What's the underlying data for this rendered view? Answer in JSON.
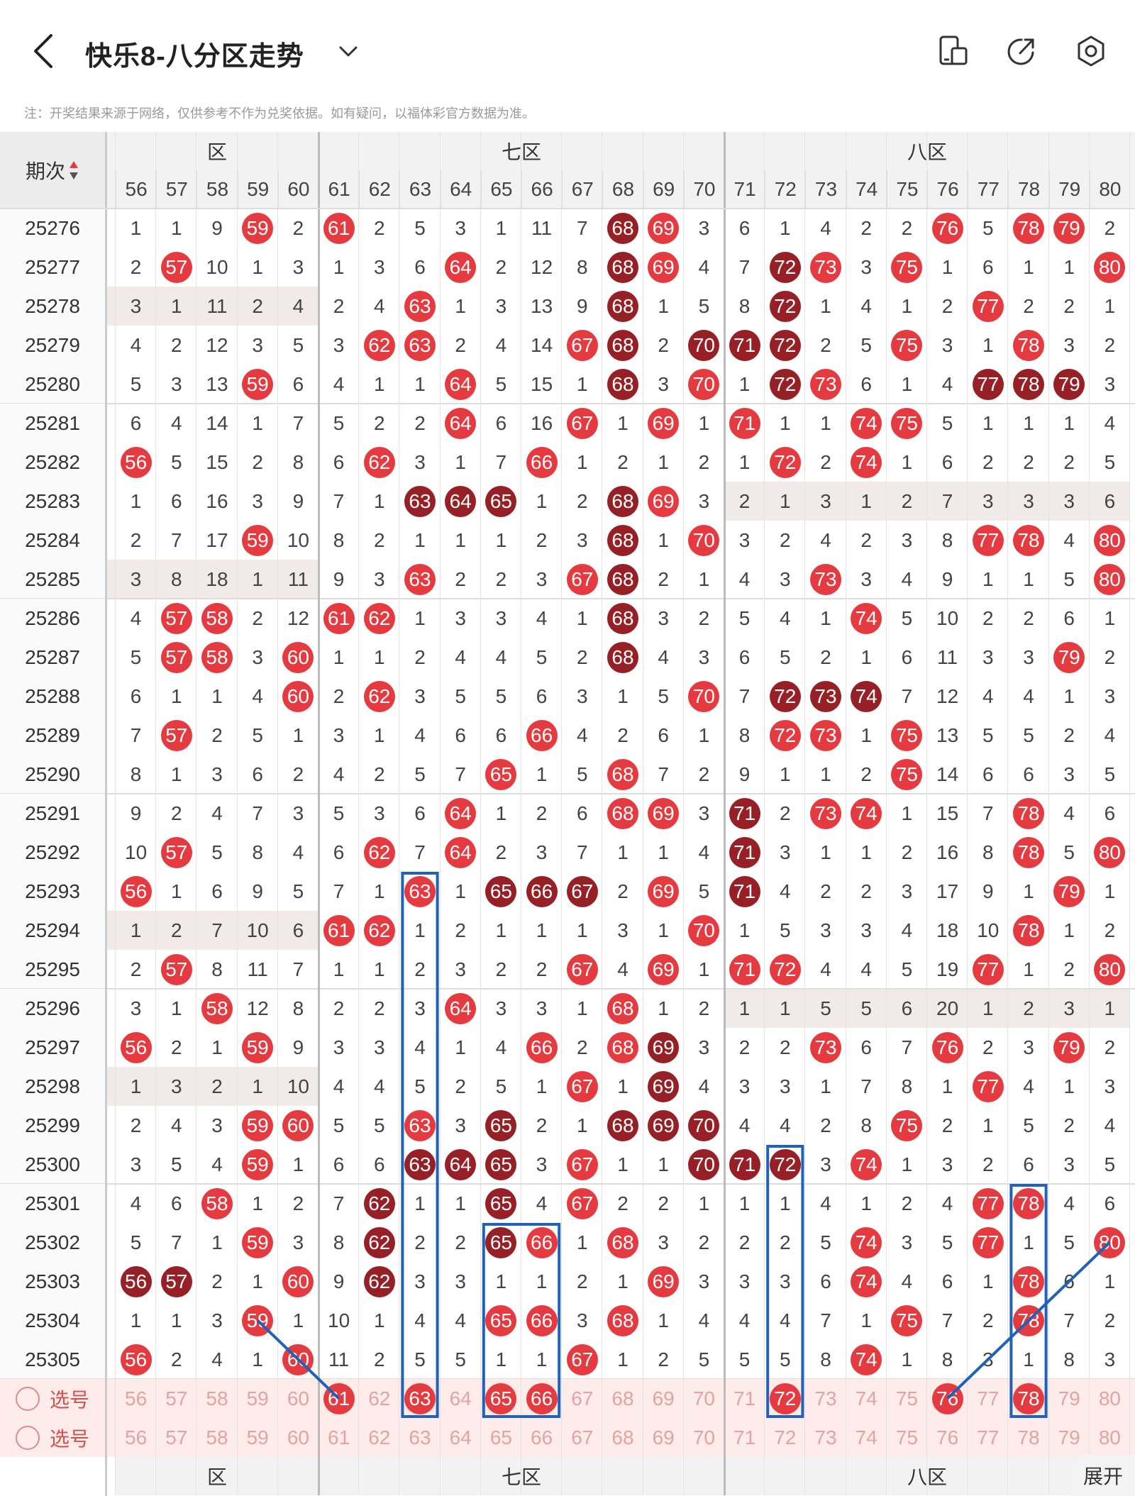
{
  "header": {
    "title": "快乐8-八分区走势",
    "notice": "注：开奖结果来源于网络，仅供参考不作为兑奖依据。如有疑问，以福体彩官方数据为准。",
    "icons": [
      "back-icon",
      "chevron-down-icon",
      "layout-toggle-icon",
      "share-icon",
      "settings-icon"
    ]
  },
  "table": {
    "issue_header": "期次",
    "zones": [
      {
        "label": "六区",
        "visible_label": "区"
      },
      {
        "label": "七区",
        "visible_label": "七区"
      },
      {
        "label": "八区",
        "visible_label": "八区"
      }
    ],
    "columns": [
      "56",
      "57",
      "58",
      "59",
      "60",
      "61",
      "62",
      "63",
      "64",
      "65",
      "66",
      "67",
      "68",
      "69",
      "70",
      "71",
      "72",
      "73",
      "74",
      "75",
      "76",
      "77",
      "78",
      "79",
      "80"
    ],
    "rows": [
      {
        "issue": "25276",
        "cells": [
          "1",
          "1",
          "9",
          "59r",
          "2",
          "61r",
          "2",
          "5",
          "3",
          "1",
          "11",
          "7",
          "68d",
          "69r",
          "3",
          "6",
          "1",
          "4",
          "2",
          "2",
          "76r",
          "5",
          "78r",
          "79r",
          "2"
        ]
      },
      {
        "issue": "25277",
        "cells": [
          "2",
          "57r",
          "10",
          "1",
          "3",
          "1",
          "3",
          "6",
          "64r",
          "2",
          "12",
          "8",
          "68d",
          "69r",
          "4",
          "7",
          "72d",
          "73r",
          "3",
          "75r",
          "1",
          "6",
          "1",
          "1",
          "80r"
        ]
      },
      {
        "issue": "25278",
        "cells": [
          "3",
          "1",
          "11",
          "2",
          "4",
          "2",
          "4",
          "63r",
          "1",
          "3",
          "13",
          "9",
          "68d",
          "1",
          "5",
          "8",
          "72d",
          "1",
          "4",
          "1",
          "2",
          "77r",
          "2",
          "2",
          "1"
        ]
      },
      {
        "issue": "25279",
        "cells": [
          "4",
          "2",
          "12",
          "3",
          "5",
          "3",
          "62r",
          "63r",
          "2",
          "4",
          "14",
          "67r",
          "68d",
          "2",
          "70d",
          "71d",
          "72d",
          "2",
          "5",
          "75r",
          "3",
          "1",
          "78r",
          "3",
          "2"
        ]
      },
      {
        "issue": "25280",
        "cells": [
          "5",
          "3",
          "13",
          "59r",
          "6",
          "4",
          "1",
          "1",
          "64r",
          "5",
          "15",
          "1",
          "68d",
          "3",
          "70r",
          "1",
          "72d",
          "73r",
          "6",
          "1",
          "4",
          "77d",
          "78d",
          "79d",
          "3"
        ]
      },
      {
        "issue": "25281",
        "cells": [
          "6",
          "4",
          "14",
          "1",
          "7",
          "5",
          "2",
          "2",
          "64r",
          "6",
          "16",
          "67r",
          "1",
          "69r",
          "1",
          "71r",
          "1",
          "1",
          "74r",
          "75r",
          "5",
          "1",
          "1",
          "1",
          "4"
        ]
      },
      {
        "issue": "25282",
        "cells": [
          "56r",
          "5",
          "15",
          "2",
          "8",
          "6",
          "62r",
          "3",
          "1",
          "7",
          "66r",
          "1",
          "2",
          "1",
          "2",
          "1",
          "72r",
          "2",
          "74r",
          "1",
          "6",
          "2",
          "2",
          "2",
          "5"
        ]
      },
      {
        "issue": "25283",
        "cells": [
          "1",
          "6",
          "16",
          "3",
          "9",
          "7",
          "1",
          "63d",
          "64d",
          "65d",
          "1",
          "2",
          "68d",
          "69r",
          "3",
          "2",
          "1",
          "3",
          "1",
          "2",
          "7",
          "3",
          "3",
          "3",
          "6"
        ]
      },
      {
        "issue": "25284",
        "cells": [
          "2",
          "7",
          "17",
          "59r",
          "10",
          "8",
          "2",
          "1",
          "1",
          "1",
          "2",
          "3",
          "68d",
          "1",
          "70r",
          "3",
          "2",
          "4",
          "2",
          "3",
          "8",
          "77r",
          "78r",
          "4",
          "80r"
        ]
      },
      {
        "issue": "25285",
        "cells": [
          "3",
          "8",
          "18",
          "1",
          "11",
          "9",
          "3",
          "63r",
          "2",
          "2",
          "3",
          "67r",
          "68d",
          "2",
          "1",
          "4",
          "3",
          "73r",
          "3",
          "4",
          "9",
          "1",
          "1",
          "5",
          "80r"
        ]
      },
      {
        "issue": "25286",
        "cells": [
          "4",
          "57r",
          "58r",
          "2",
          "12",
          "61r",
          "62r",
          "1",
          "3",
          "3",
          "4",
          "1",
          "68d",
          "3",
          "2",
          "5",
          "4",
          "1",
          "74r",
          "5",
          "10",
          "2",
          "2",
          "6",
          "1"
        ]
      },
      {
        "issue": "25287",
        "cells": [
          "5",
          "57r",
          "58r",
          "3",
          "60r",
          "1",
          "1",
          "2",
          "4",
          "4",
          "5",
          "2",
          "68d",
          "4",
          "3",
          "6",
          "5",
          "2",
          "1",
          "6",
          "11",
          "3",
          "3",
          "79r",
          "2"
        ]
      },
      {
        "issue": "25288",
        "cells": [
          "6",
          "1",
          "1",
          "4",
          "60r",
          "2",
          "62r",
          "3",
          "5",
          "5",
          "6",
          "3",
          "1",
          "5",
          "70r",
          "7",
          "72d",
          "73d",
          "74d",
          "7",
          "12",
          "4",
          "4",
          "1",
          "3"
        ]
      },
      {
        "issue": "25289",
        "cells": [
          "7",
          "57r",
          "2",
          "5",
          "1",
          "3",
          "1",
          "4",
          "6",
          "6",
          "66r",
          "4",
          "2",
          "6",
          "1",
          "8",
          "72r",
          "73r",
          "1",
          "75r",
          "13",
          "5",
          "5",
          "2",
          "4"
        ]
      },
      {
        "issue": "25290",
        "cells": [
          "8",
          "1",
          "3",
          "6",
          "2",
          "4",
          "2",
          "5",
          "7",
          "65r",
          "1",
          "5",
          "68r",
          "7",
          "2",
          "9",
          "1",
          "1",
          "2",
          "75r",
          "14",
          "6",
          "6",
          "3",
          "5"
        ]
      },
      {
        "issue": "25291",
        "cells": [
          "9",
          "2",
          "4",
          "7",
          "3",
          "5",
          "3",
          "6",
          "64r",
          "1",
          "2",
          "6",
          "68r",
          "69r",
          "3",
          "71d",
          "2",
          "73r",
          "74r",
          "1",
          "15",
          "7",
          "78r",
          "4",
          "6"
        ]
      },
      {
        "issue": "25292",
        "cells": [
          "10",
          "57r",
          "5",
          "8",
          "4",
          "6",
          "62r",
          "7",
          "64r",
          "2",
          "3",
          "7",
          "1",
          "1",
          "4",
          "71d",
          "3",
          "1",
          "1",
          "2",
          "16",
          "8",
          "78r",
          "5",
          "80r"
        ]
      },
      {
        "issue": "25293",
        "cells": [
          "56r",
          "1",
          "6",
          "9",
          "5",
          "7",
          "1",
          "63r",
          "1",
          "65d",
          "66d",
          "67d",
          "2",
          "69r",
          "5",
          "71d",
          "4",
          "2",
          "2",
          "3",
          "17",
          "9",
          "1",
          "79r",
          "1"
        ]
      },
      {
        "issue": "25294",
        "cells": [
          "1",
          "2",
          "7",
          "10",
          "6",
          "61r",
          "62r",
          "1",
          "2",
          "1",
          "1",
          "1",
          "3",
          "1",
          "70r",
          "1",
          "5",
          "3",
          "3",
          "4",
          "18",
          "10",
          "78r",
          "1",
          "2"
        ]
      },
      {
        "issue": "25295",
        "cells": [
          "2",
          "57r",
          "8",
          "11",
          "7",
          "1",
          "1",
          "2",
          "3",
          "2",
          "2",
          "67r",
          "4",
          "69r",
          "1",
          "71r",
          "72r",
          "4",
          "4",
          "5",
          "19",
          "77r",
          "1",
          "2",
          "80r"
        ]
      },
      {
        "issue": "25296",
        "cells": [
          "3",
          "1",
          "58r",
          "12",
          "8",
          "2",
          "2",
          "3",
          "64r",
          "3",
          "3",
          "1",
          "68r",
          "1",
          "2",
          "1",
          "1",
          "5",
          "5",
          "6",
          "20",
          "1",
          "2",
          "3",
          "1"
        ]
      },
      {
        "issue": "25297",
        "cells": [
          "56r",
          "2",
          "1",
          "59r",
          "9",
          "3",
          "3",
          "4",
          "1",
          "4",
          "66r",
          "2",
          "68r",
          "69d",
          "3",
          "2",
          "2",
          "73r",
          "6",
          "7",
          "76r",
          "2",
          "3",
          "79r",
          "2"
        ]
      },
      {
        "issue": "25298",
        "cells": [
          "1",
          "3",
          "2",
          "1",
          "10",
          "4",
          "4",
          "5",
          "2",
          "5",
          "1",
          "67r",
          "1",
          "69d",
          "4",
          "3",
          "3",
          "1",
          "7",
          "8",
          "1",
          "77r",
          "4",
          "1",
          "3"
        ]
      },
      {
        "issue": "25299",
        "cells": [
          "2",
          "4",
          "3",
          "59r",
          "60r",
          "5",
          "5",
          "63r",
          "3",
          "65d",
          "2",
          "1",
          "68d",
          "69d",
          "70d",
          "4",
          "4",
          "2",
          "8",
          "75r",
          "2",
          "1",
          "5",
          "2",
          "4"
        ]
      },
      {
        "issue": "25300",
        "cells": [
          "3",
          "5",
          "4",
          "59r",
          "1",
          "6",
          "6",
          "63d",
          "64d",
          "65d",
          "3",
          "67r",
          "1",
          "1",
          "70d",
          "71d",
          "72d",
          "3",
          "74r",
          "1",
          "3",
          "2",
          "6",
          "3",
          "5"
        ]
      },
      {
        "issue": "25301",
        "cells": [
          "4",
          "6",
          "58r",
          "1",
          "2",
          "7",
          "62d",
          "1",
          "1",
          "65d",
          "4",
          "67r",
          "2",
          "2",
          "1",
          "1",
          "1",
          "4",
          "1",
          "2",
          "4",
          "77r",
          "78r",
          "4",
          "6"
        ]
      },
      {
        "issue": "25302",
        "cells": [
          "5",
          "7",
          "1",
          "59r",
          "3",
          "8",
          "62d",
          "2",
          "2",
          "65d",
          "66r",
          "1",
          "68r",
          "3",
          "2",
          "2",
          "2",
          "5",
          "74r",
          "3",
          "5",
          "77r",
          "1",
          "5",
          "80r"
        ]
      },
      {
        "issue": "25303",
        "cells": [
          "56d",
          "57d",
          "2",
          "1",
          "60r",
          "9",
          "62d",
          "3",
          "3",
          "1",
          "1",
          "2",
          "1",
          "69r",
          "3",
          "3",
          "3",
          "6",
          "74r",
          "4",
          "6",
          "1",
          "78r",
          "6",
          "1"
        ]
      },
      {
        "issue": "25304",
        "cells": [
          "1",
          "1",
          "3",
          "59r",
          "1",
          "10",
          "1",
          "4",
          "4",
          "65r",
          "66r",
          "3",
          "68r",
          "1",
          "4",
          "4",
          "4",
          "7",
          "1",
          "75r",
          "7",
          "2",
          "78r",
          "7",
          "2"
        ]
      },
      {
        "issue": "25305",
        "cells": [
          "56r",
          "2",
          "4",
          "1",
          "60r",
          "11",
          "2",
          "5",
          "5",
          "1",
          "1",
          "67r",
          "1",
          "2",
          "5",
          "5",
          "5",
          "8",
          "74r",
          "1",
          "8",
          "3",
          "1",
          "8",
          "3"
        ]
      }
    ],
    "select_rows": [
      {
        "label": "选号",
        "picked": [
          "61",
          "63",
          "65",
          "66",
          "72",
          "76",
          "78"
        ]
      },
      {
        "label": "选号",
        "picked": []
      }
    ],
    "shaded_rows": [
      2,
      7,
      9,
      18,
      20,
      22
    ],
    "shaded_cells": [
      {
        "row": 2,
        "from": 0,
        "to": 4
      },
      {
        "row": 7,
        "from": 15,
        "to": 24
      },
      {
        "row": 9,
        "from": 0,
        "to": 4
      },
      {
        "row": 18,
        "from": 0,
        "to": 4
      },
      {
        "row": 20,
        "from": 15,
        "to": 24
      },
      {
        "row": 22,
        "from": 0,
        "to": 4
      }
    ]
  },
  "colors": {
    "red_ball": "#e53a3f",
    "dark_ball": "#962025",
    "annotation": "#1f62b8",
    "select_row_bg": "#fdecea"
  },
  "expand_button": "展开"
}
